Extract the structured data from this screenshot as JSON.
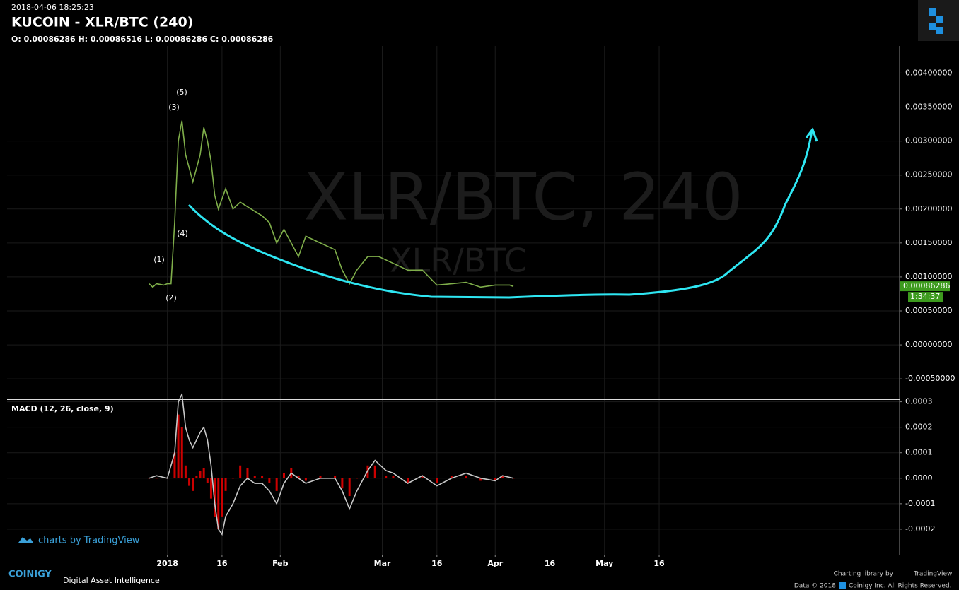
{
  "header": {
    "timestamp": "2018-04-06 18:25:23",
    "title": "KUCOIN - XLR/BTC (240)",
    "ohlc": "O: 0.00086286 H: 0.00086516 L: 0.00086286 C: 0.00086286"
  },
  "chart_data": [
    {
      "type": "line",
      "watermark": "XLR/BTC, 240",
      "watermark_small": "XLR/BTC",
      "color": "#7fae4a",
      "x": [
        -5,
        -4,
        -3,
        -1,
        0,
        1,
        2,
        3,
        4,
        5,
        6,
        7,
        8,
        9,
        10,
        11,
        12,
        13,
        14,
        16,
        18,
        20,
        23,
        26,
        28,
        30,
        32,
        34,
        36,
        38,
        42,
        46,
        48,
        50,
        52,
        55,
        58,
        62,
        66,
        70,
        74,
        78,
        82,
        86,
        90,
        94,
        95
      ],
      "values": [
        0.0009,
        0.00085,
        0.0009,
        0.00088,
        0.0009,
        0.0009,
        0.0018,
        0.003,
        0.0033,
        0.0028,
        0.0026,
        0.0024,
        0.0026,
        0.0028,
        0.0032,
        0.003,
        0.0027,
        0.0022,
        0.002,
        0.0023,
        0.002,
        0.0021,
        0.002,
        0.0019,
        0.0018,
        0.0015,
        0.0017,
        0.0015,
        0.0013,
        0.0016,
        0.0015,
        0.0014,
        0.0011,
        0.0009,
        0.0011,
        0.0013,
        0.0013,
        0.0012,
        0.0011,
        0.0011,
        0.00088,
        0.0009,
        0.00092,
        0.00085,
        0.00088,
        0.00088,
        0.00086
      ],
      "xlim": [
        -44,
        201
      ],
      "xticks": [
        {
          "value": 0,
          "label": "2018"
        },
        {
          "value": 15,
          "label": "16"
        },
        {
          "value": 31,
          "label": "Feb"
        },
        {
          "value": 59,
          "label": "Mar"
        },
        {
          "value": 74,
          "label": "16"
        },
        {
          "value": 90,
          "label": "Apr"
        },
        {
          "value": 105,
          "label": "16"
        },
        {
          "value": 120,
          "label": "May"
        },
        {
          "value": 135,
          "label": "16"
        }
      ],
      "ylim": [
        -0.0008,
        0.0044
      ],
      "yticks": [
        {
          "value": 0.004,
          "label": "0.00400000"
        },
        {
          "value": 0.0035,
          "label": "0.00350000"
        },
        {
          "value": 0.003,
          "label": "0.00300000"
        },
        {
          "value": 0.0025,
          "label": "0.00250000"
        },
        {
          "value": 0.002,
          "label": "0.00200000"
        },
        {
          "value": 0.0015,
          "label": "0.00150000"
        },
        {
          "value": 0.001,
          "label": "0.00100000"
        },
        {
          "value": 0.0005,
          "label": "0.00050000"
        },
        {
          "value": 0,
          "label": "0.00000000"
        },
        {
          "value": -0.0005,
          "label": "-0.00050000"
        }
      ],
      "last_price": 0.00086286,
      "countdown": "1:34:37",
      "grid": true,
      "annotations": [
        "(1)",
        "(2)",
        "(3)",
        "(4)",
        "(5)"
      ]
    },
    {
      "type": "line",
      "title": "MACD (12, 26, close, 9)",
      "x": [
        -5,
        -3,
        0,
        2,
        3,
        4,
        5,
        6,
        7,
        8,
        9,
        10,
        11,
        12,
        13,
        14,
        15,
        16,
        18,
        20,
        22,
        24,
        26,
        28,
        30,
        32,
        34,
        36,
        38,
        42,
        46,
        48,
        50,
        52,
        55,
        57,
        60,
        62,
        66,
        70,
        74,
        78,
        82,
        86,
        90,
        92,
        95
      ],
      "series": [
        {
          "color": "#c8c8c8",
          "values": [
            0,
            1e-05,
            0,
            0.0001,
            0.0003,
            0.00033,
            0.0002,
            0.00015,
            0.00012,
            0.00015,
            0.00018,
            0.0002,
            0.00015,
            5e-05,
            -0.0001,
            -0.0002,
            -0.00022,
            -0.00015,
            -0.0001,
            -3e-05,
            0,
            -2e-05,
            -2e-05,
            -5e-05,
            -0.0001,
            -2e-05,
            2e-05,
            0,
            -2e-05,
            0,
            0,
            -5e-05,
            -0.00012,
            -5e-05,
            3e-05,
            7e-05,
            3e-05,
            2e-05,
            -2e-05,
            1e-05,
            -3e-05,
            0,
            2e-05,
            0,
            -1e-05,
            1e-05,
            0
          ]
        }
      ],
      "histogram": {
        "color": "#cc0000",
        "values": [
          0,
          0,
          0,
          0.0001,
          0.00025,
          0.0002,
          5e-05,
          -3e-05,
          -5e-05,
          1e-05,
          3e-05,
          4e-05,
          -2e-05,
          -8e-05,
          -0.00015,
          -0.0002,
          -0.00015,
          -5e-05,
          0,
          5e-05,
          4e-05,
          1e-05,
          1e-05,
          -2e-05,
          -5e-05,
          2e-05,
          4e-05,
          1e-05,
          -1e-05,
          1e-05,
          1e-05,
          -4e-05,
          -7e-05,
          0,
          5e-05,
          5e-05,
          1e-05,
          1e-05,
          -2e-05,
          1e-05,
          -2e-05,
          1e-05,
          1e-05,
          -1e-05,
          -1e-05,
          1e-05,
          0
        ]
      },
      "xlim": [
        -44,
        201
      ],
      "ylim": [
        -0.0003,
        0.00031
      ],
      "yticks": [
        0.0003,
        0.0002,
        0.0001,
        {
          "value": 0,
          "label": "0.0000"
        },
        -0.0001,
        -0.0002
      ],
      "grid": true
    }
  ],
  "footer": {
    "tradingview_badge": "charts by TradingView",
    "brand": "COINIGY",
    "tagline": "Digital Asset Intelligence",
    "charting_by": "Charting library by",
    "charting_name": "TradingView",
    "data_year": "Data © 2018",
    "rights": "Coinigy Inc. All Rights Reserved."
  }
}
